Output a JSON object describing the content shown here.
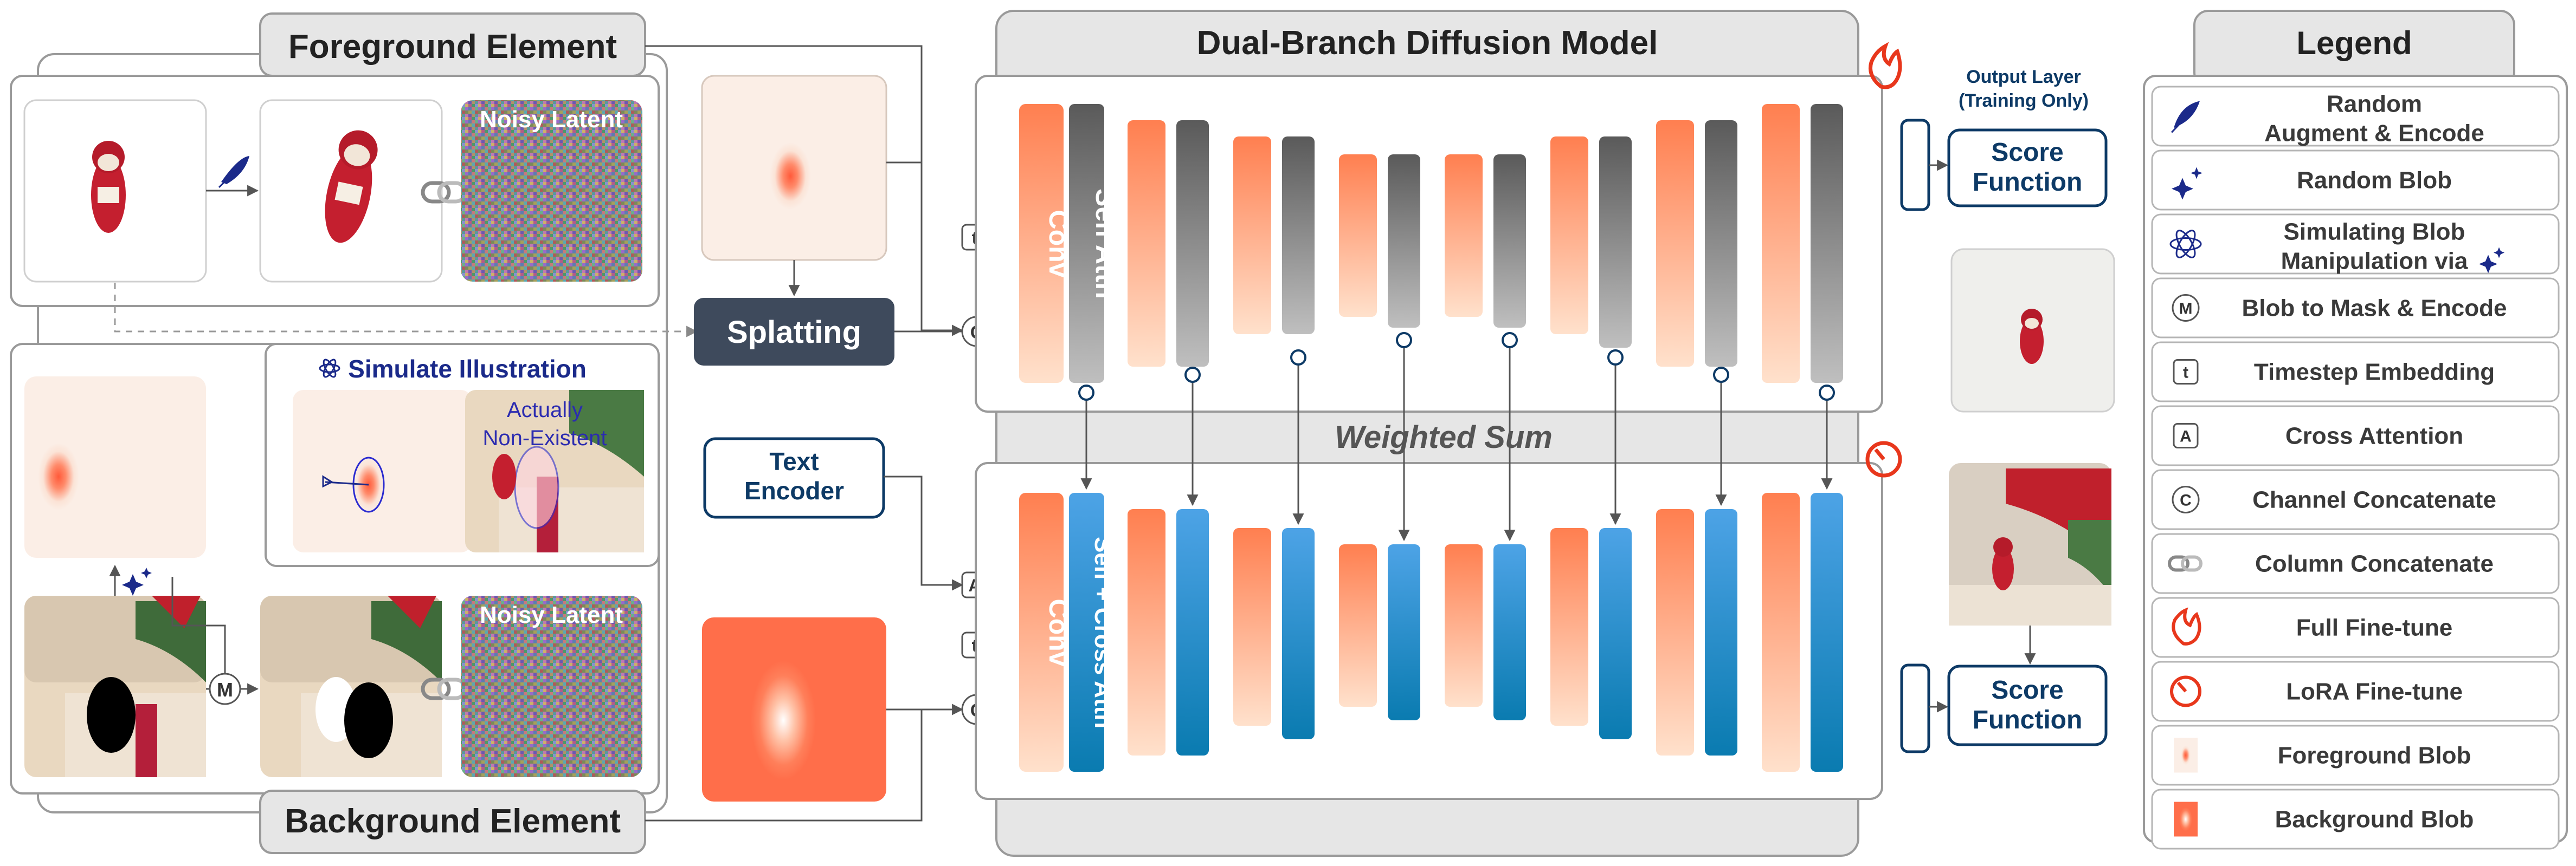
{
  "titles": {
    "foreground": "Foreground Element",
    "background": "Background Element",
    "model": "Dual-Branch Diffusion Model",
    "legend": "Legend"
  },
  "foreground_panel": {
    "noisy_latent": "Noisy Latent"
  },
  "background_panel": {
    "noisy_latent": "Noisy Latent"
  },
  "simulate": {
    "title": "Simulate Illustration",
    "note_line1": "Actually",
    "note_line2": "Non-Existent"
  },
  "nodes": {
    "splatting": "Splatting",
    "text_encoder_line1": "Text",
    "text_encoder_line2": "Encoder",
    "weighted_sum": "Weighted Sum",
    "output_layer_line1": "Output Layer",
    "output_layer_line2": "(Training Only)",
    "score_function_line1": "Score",
    "score_function_line2": "Function",
    "conv": "Conv",
    "self_attn": "Self Attn",
    "self_cross_attn": "Self + Cross Attn"
  },
  "symbols": {
    "t": "t",
    "c": "C",
    "a": "A",
    "m": "M"
  },
  "legend": {
    "items": [
      {
        "line1": "Random",
        "line2": "Augment & Encode",
        "icon": "feather-icon"
      },
      {
        "line1": "Random Blob",
        "line2": "",
        "icon": "sparkle-icon"
      },
      {
        "line1": "Simulating Blob",
        "line2": "Manipulation via",
        "icon": "atom-icon"
      },
      {
        "line1": "Blob to Mask & Encode",
        "line2": "",
        "icon": "m-circle-icon"
      },
      {
        "line1": "Timestep Embedding",
        "line2": "",
        "icon": "t-square-icon"
      },
      {
        "line1": "Cross Attention",
        "line2": "",
        "icon": "a-square-icon"
      },
      {
        "line1": "Channel Concatenate",
        "line2": "",
        "icon": "c-circle-icon"
      },
      {
        "line1": "Column Concatenate",
        "line2": "",
        "icon": "chain-link-icon"
      },
      {
        "line1": "Full Fine-tune",
        "line2": "",
        "icon": "flame-icon"
      },
      {
        "line1": "LoRA Fine-tune",
        "line2": "",
        "icon": "lora-dial-icon"
      },
      {
        "line1": "Foreground Blob",
        "line2": "",
        "icon": "foreground-blob-icon"
      },
      {
        "line1": "Background Blob",
        "line2": "",
        "icon": "background-blob-icon"
      }
    ]
  },
  "colors": {
    "navy": "#0d3a66",
    "dark_blue": "#1b2a8a",
    "conv_orange": "#ff8a5c",
    "attn_gray": "#6b6b6b",
    "attn_blue": "#2f8fd6",
    "panel_gray": "#e6e6e6",
    "splat_fill": "#3e4a5c",
    "flame_red": "#e8371c"
  }
}
